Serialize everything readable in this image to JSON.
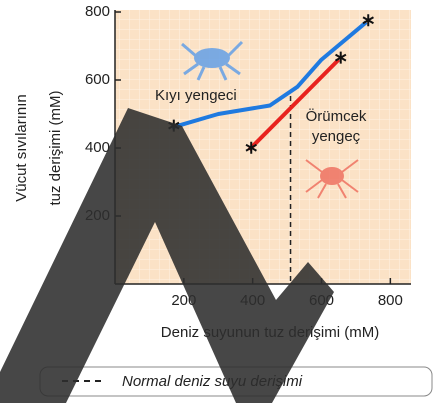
{
  "chart_data": {
    "type": "line",
    "ylabel": [
      "Vücut sıvılarının",
      "tuz derişimi (mM)"
    ],
    "xlabel": "Deniz suyunun tuz derişimi (mM)",
    "xlim": [
      0,
      860
    ],
    "xticks": [
      200,
      400,
      600,
      800
    ],
    "ylim": [
      0,
      800
    ],
    "yticks": [
      200,
      400,
      600,
      800
    ],
    "series": [
      {
        "name": [
          "Kıyı yengeci"
        ],
        "color": "#1f7ae0",
        "x": [
          165,
          300,
          450,
          530,
          600,
          730
        ],
        "values": [
          460,
          500,
          525,
          580,
          660,
          770
        ]
      },
      {
        "name": [
          "Örümcek",
          "yengeç"
        ],
        "color": "#e8231f",
        "x": [
          390,
          650
        ],
        "values": [
          395,
          660
        ]
      }
    ],
    "reference": {
      "x": 510,
      "label": "Normal deniz suyu derişimi"
    }
  }
}
